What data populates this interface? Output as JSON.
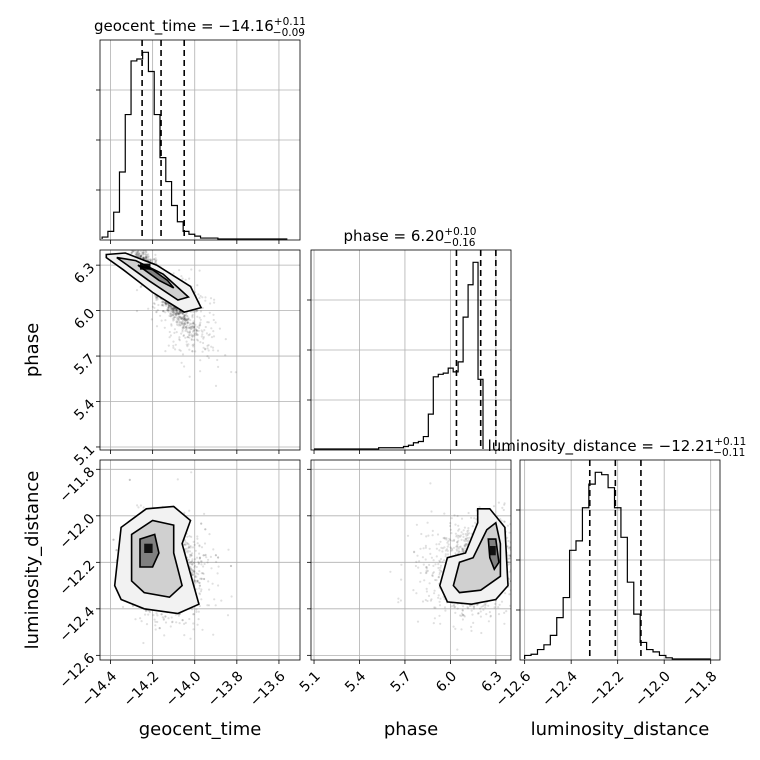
{
  "chart_data": {
    "type": "corner",
    "parameters": [
      {
        "key": "geocent_time",
        "label": "geocent_time",
        "range": [
          -14.45,
          -13.5
        ],
        "ticks": [
          -14.4,
          -14.2,
          -14.0,
          -13.8,
          -13.6
        ],
        "tick_labels": [
          "−14.4",
          "−14.2",
          "−14.0",
          "−13.8",
          "−13.6"
        ]
      },
      {
        "key": "phase",
        "label": "phase",
        "range": [
          5.08,
          6.4
        ],
        "ticks": [
          5.1,
          5.4,
          5.7,
          6.0,
          6.3
        ],
        "tick_labels": [
          "5.1",
          "5.4",
          "5.7",
          "6.0",
          "6.3"
        ]
      },
      {
        "key": "luminosity_distance",
        "label": "luminosity_distance",
        "range": [
          -12.62,
          -11.76
        ],
        "ticks": [
          -12.6,
          -12.4,
          -12.2,
          -12.0,
          -11.8
        ],
        "tick_labels": [
          "−12.6",
          "−12.4",
          "−12.2",
          "−12.0",
          "−11.8"
        ]
      }
    ],
    "titles": [
      {
        "main": "geocent_time = −14.16",
        "sup": "+0.11",
        "sub": "−0.09"
      },
      {
        "main": "phase = 6.20",
        "sup": "+0.10",
        "sub": "−0.16"
      },
      {
        "main": "luminosity_distance = −12.21",
        "sup": "+0.11",
        "sub": "−0.11"
      }
    ],
    "quantiles": [
      [
        -14.25,
        -14.16,
        -14.05
      ],
      [
        6.04,
        6.2,
        6.3
      ],
      [
        -12.32,
        -12.21,
        -12.1
      ]
    ],
    "histograms": [
      {
        "bin_start": -14.44,
        "bin_width": 0.0275,
        "counts": [
          2,
          8,
          28,
          70,
          130,
          186,
          188,
          195,
          175,
          130,
          85,
          60,
          35,
          18,
          8,
          5,
          3,
          1,
          1,
          1,
          0,
          0,
          0,
          0,
          0,
          0,
          0,
          0,
          0,
          0,
          0,
          0
        ]
      },
      {
        "bin_start": 5.1,
        "bin_width": 0.0328,
        "counts": [
          0,
          0,
          0,
          0,
          0,
          0,
          0,
          0,
          0,
          0,
          0,
          0,
          0,
          1,
          1,
          1,
          1,
          1,
          2,
          3,
          5,
          6,
          10,
          28,
          58,
          60,
          61,
          65,
          62,
          70,
          106,
          132,
          150,
          56
        ]
      },
      {
        "bin_start": -12.6,
        "bin_width": 0.0276,
        "counts": [
          3,
          4,
          8,
          12,
          20,
          35,
          52,
          92,
          100,
          128,
          148,
          158,
          156,
          145,
          128,
          103,
          65,
          38,
          14,
          8,
          6,
          3,
          1,
          0,
          0,
          0,
          0,
          0,
          0
        ]
      }
    ],
    "pairs": [
      {
        "x": "geocent_time",
        "y": "phase",
        "cloud_center": [
          -14.16,
          6.16
        ],
        "correlation": -0.93
      },
      {
        "x": "geocent_time",
        "y": "luminosity_distance",
        "cloud_center": [
          -14.16,
          -12.22
        ],
        "correlation": -0.1
      },
      {
        "x": "phase",
        "y": "luminosity_distance",
        "cloud_center": [
          6.18,
          -12.22
        ],
        "correlation": 0.25
      }
    ],
    "grid": true
  }
}
